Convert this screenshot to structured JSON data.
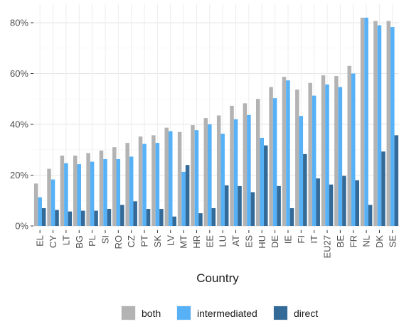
{
  "chart_data": {
    "type": "bar",
    "xlabel": "Country",
    "ylabel": "",
    "ylim": [
      0,
      0.85
    ],
    "yticks": [
      0,
      0.2,
      0.4,
      0.6,
      0.8
    ],
    "ytick_labels": [
      "0%",
      "20%",
      "40%",
      "60%",
      "80%"
    ],
    "grid": true,
    "legend_position": "bottom",
    "categories": [
      "EL",
      "CY",
      "LT",
      "BG",
      "PL",
      "SI",
      "RO",
      "CZ",
      "PT",
      "SK",
      "LV",
      "MT",
      "HR",
      "EE",
      "LU",
      "AT",
      "ES",
      "HU",
      "DE",
      "IE",
      "FI",
      "IT",
      "EU27",
      "BE",
      "FR",
      "NL",
      "DK",
      "SE"
    ],
    "series": [
      {
        "name": "both",
        "color": "#b3b3b3",
        "values": [
          0.167,
          0.225,
          0.277,
          0.277,
          0.287,
          0.297,
          0.31,
          0.327,
          0.352,
          0.357,
          0.387,
          0.37,
          0.397,
          0.425,
          0.435,
          0.473,
          0.483,
          0.5,
          0.547,
          0.587,
          0.537,
          0.563,
          0.593,
          0.59,
          0.63,
          0.82,
          0.807,
          0.807
        ]
      },
      {
        "name": "intermediated",
        "color": "#56b1f7",
        "values": [
          0.113,
          0.183,
          0.247,
          0.243,
          0.253,
          0.263,
          0.263,
          0.273,
          0.323,
          0.327,
          0.373,
          0.213,
          0.377,
          0.4,
          0.363,
          0.42,
          0.437,
          0.347,
          0.503,
          0.573,
          0.433,
          0.513,
          0.557,
          0.547,
          0.6,
          0.82,
          0.79,
          0.783
        ]
      },
      {
        "name": "direct",
        "color": "#336a98",
        "values": [
          0.07,
          0.063,
          0.057,
          0.06,
          0.06,
          0.067,
          0.083,
          0.097,
          0.067,
          0.067,
          0.037,
          0.24,
          0.05,
          0.07,
          0.16,
          0.157,
          0.133,
          0.317,
          0.157,
          0.07,
          0.283,
          0.187,
          0.163,
          0.197,
          0.18,
          0.083,
          0.293,
          0.357
        ]
      }
    ]
  }
}
